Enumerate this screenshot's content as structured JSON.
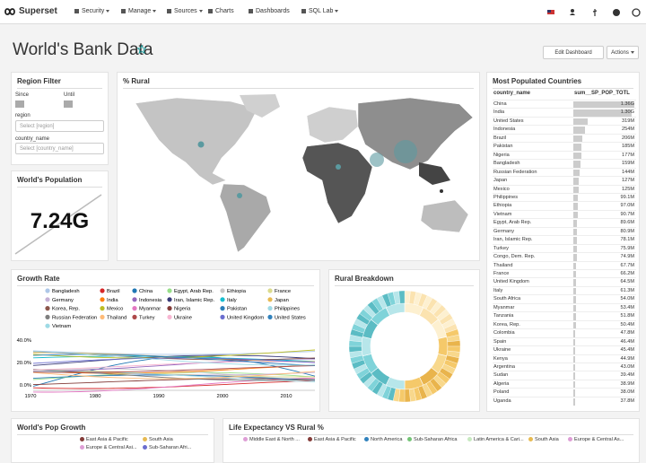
{
  "navbar": {
    "brand": "Superset",
    "menu": [
      "Security",
      "Manage",
      "Sources",
      "Charts",
      "Dashboards",
      "SQL Lab"
    ]
  },
  "header": {
    "title": "World's Bank Data",
    "buttons": [
      "Edit Dashboard",
      "Actions"
    ]
  },
  "region_filter": {
    "title": "Region Filter",
    "since": "Since",
    "until": "Until",
    "region_label": "region",
    "region_placeholder": "Select [region]",
    "country_label": "country_name",
    "country_placeholder": "Select [country_name]"
  },
  "world_population": {
    "title": "World's Population",
    "value": "7.24G"
  },
  "rural_map": {
    "title": "% Rural"
  },
  "growth_rate": {
    "title": "Growth Rate",
    "legend": [
      {
        "name": "Bangladesh",
        "color": "#aec7e8"
      },
      {
        "name": "Brazil",
        "color": "#d62728"
      },
      {
        "name": "China",
        "color": "#1f77b4"
      },
      {
        "name": "Egypt, Arab Rep.",
        "color": "#98df8a"
      },
      {
        "name": "Ethiopia",
        "color": "#c7c7c7"
      },
      {
        "name": "France",
        "color": "#dbdb8d"
      },
      {
        "name": "Germany",
        "color": "#c5b0d5"
      },
      {
        "name": "India",
        "color": "#ff7f0e"
      },
      {
        "name": "Indonesia",
        "color": "#9467bd"
      },
      {
        "name": "Iran, Islamic Rep.",
        "color": "#393b79"
      },
      {
        "name": "Italy",
        "color": "#17becf"
      },
      {
        "name": "Japan",
        "color": "#e7ba52"
      },
      {
        "name": "Korea, Rep.",
        "color": "#8c564b"
      },
      {
        "name": "Mexico",
        "color": "#bcbd22"
      },
      {
        "name": "Myanmar",
        "color": "#e377c2"
      },
      {
        "name": "Nigeria",
        "color": "#843c39"
      },
      {
        "name": "Pakistan",
        "color": "#2c7fb8"
      },
      {
        "name": "Philippines",
        "color": "#9edae5"
      },
      {
        "name": "Russian Federation",
        "color": "#7f7f7f"
      },
      {
        "name": "Thailand",
        "color": "#ffbb78"
      },
      {
        "name": "Turkey",
        "color": "#ad494a"
      },
      {
        "name": "Ukraine",
        "color": "#f7b6d2"
      },
      {
        "name": "United Kingdom",
        "color": "#6b6ecf"
      },
      {
        "name": "United States",
        "color": "#3182bd"
      },
      {
        "name": "Vietnam",
        "color": "#9edae5"
      }
    ],
    "yticks": [
      "40.0%",
      "20.0%",
      "0.0%"
    ],
    "xticks": [
      "1970",
      "1980",
      "1990",
      "2000",
      "2010"
    ]
  },
  "rural_breakdown": {
    "title": "Rural Breakdown"
  },
  "top_countries": {
    "title": "Most Populated Countries",
    "columns": [
      "country_name",
      "sum__SP_POP_TOTL"
    ],
    "rows": [
      {
        "country": "China",
        "value": 1360000000,
        "label": "1.36G"
      },
      {
        "country": "India",
        "value": 1300000000,
        "label": "1.30G"
      },
      {
        "country": "United States",
        "value": 319000000,
        "label": "319M"
      },
      {
        "country": "Indonesia",
        "value": 254000000,
        "label": "254M"
      },
      {
        "country": "Brazil",
        "value": 206000000,
        "label": "206M"
      },
      {
        "country": "Pakistan",
        "value": 185000000,
        "label": "185M"
      },
      {
        "country": "Nigeria",
        "value": 177000000,
        "label": "177M"
      },
      {
        "country": "Bangladesh",
        "value": 159000000,
        "label": "159M"
      },
      {
        "country": "Russian Federation",
        "value": 144000000,
        "label": "144M"
      },
      {
        "country": "Japan",
        "value": 127000000,
        "label": "127M"
      },
      {
        "country": "Mexico",
        "value": 125000000,
        "label": "125M"
      },
      {
        "country": "Philippines",
        "value": 99100000,
        "label": "99.1M"
      },
      {
        "country": "Ethiopia",
        "value": 97000000,
        "label": "97.0M"
      },
      {
        "country": "Vietnam",
        "value": 90700000,
        "label": "90.7M"
      },
      {
        "country": "Egypt, Arab Rep.",
        "value": 89600000,
        "label": "89.6M"
      },
      {
        "country": "Germany",
        "value": 80900000,
        "label": "80.9M"
      },
      {
        "country": "Iran, Islamic Rep.",
        "value": 78100000,
        "label": "78.1M"
      },
      {
        "country": "Turkey",
        "value": 75900000,
        "label": "75.9M"
      },
      {
        "country": "Congo, Dem. Rep.",
        "value": 74900000,
        "label": "74.9M"
      },
      {
        "country": "Thailand",
        "value": 67700000,
        "label": "67.7M"
      },
      {
        "country": "France",
        "value": 66200000,
        "label": "66.2M"
      },
      {
        "country": "United Kingdom",
        "value": 64500000,
        "label": "64.5M"
      },
      {
        "country": "Italy",
        "value": 61300000,
        "label": "61.3M"
      },
      {
        "country": "South Africa",
        "value": 54000000,
        "label": "54.0M"
      },
      {
        "country": "Myanmar",
        "value": 53400000,
        "label": "53.4M"
      },
      {
        "country": "Tanzania",
        "value": 51800000,
        "label": "51.8M"
      },
      {
        "country": "Korea, Rep.",
        "value": 50400000,
        "label": "50.4M"
      },
      {
        "country": "Colombia",
        "value": 47800000,
        "label": "47.8M"
      },
      {
        "country": "Spain",
        "value": 46400000,
        "label": "46.4M"
      },
      {
        "country": "Ukraine",
        "value": 45400000,
        "label": "45.4M"
      },
      {
        "country": "Kenya",
        "value": 44900000,
        "label": "44.9M"
      },
      {
        "country": "Argentina",
        "value": 43000000,
        "label": "43.0M"
      },
      {
        "country": "Sudan",
        "value": 39400000,
        "label": "39.4M"
      },
      {
        "country": "Algeria",
        "value": 38900000,
        "label": "38.9M"
      },
      {
        "country": "Poland",
        "value": 38000000,
        "label": "38.0M"
      },
      {
        "country": "Uganda",
        "value": 37800000,
        "label": "37.8M"
      }
    ]
  },
  "pop_growth": {
    "title": "World's Pop Growth",
    "legend": [
      {
        "name": "East Asia & Pacific",
        "color": "#843c39"
      },
      {
        "name": "South Asia",
        "color": "#e7ba52"
      },
      {
        "name": "Europe & Central Asi...",
        "color": "#de9ed6"
      },
      {
        "name": "Sub-Saharan Afri...",
        "color": "#6b6ecf"
      }
    ]
  },
  "life_expectancy": {
    "title": "Life Expectancy VS Rural %",
    "legend": [
      {
        "name": "Middle East & North ...",
        "color": "#de9ed6"
      },
      {
        "name": "East Asia & Pacific",
        "color": "#843c39"
      },
      {
        "name": "North America",
        "color": "#3182bd"
      },
      {
        "name": "Sub-Saharan Africa",
        "color": "#74c476"
      },
      {
        "name": "Latin America & Cari...",
        "color": "#c7e9c0"
      },
      {
        "name": "South Asia",
        "color": "#e7ba52"
      },
      {
        "name": "Europe & Central As...",
        "color": "#de9ed6"
      }
    ]
  }
}
